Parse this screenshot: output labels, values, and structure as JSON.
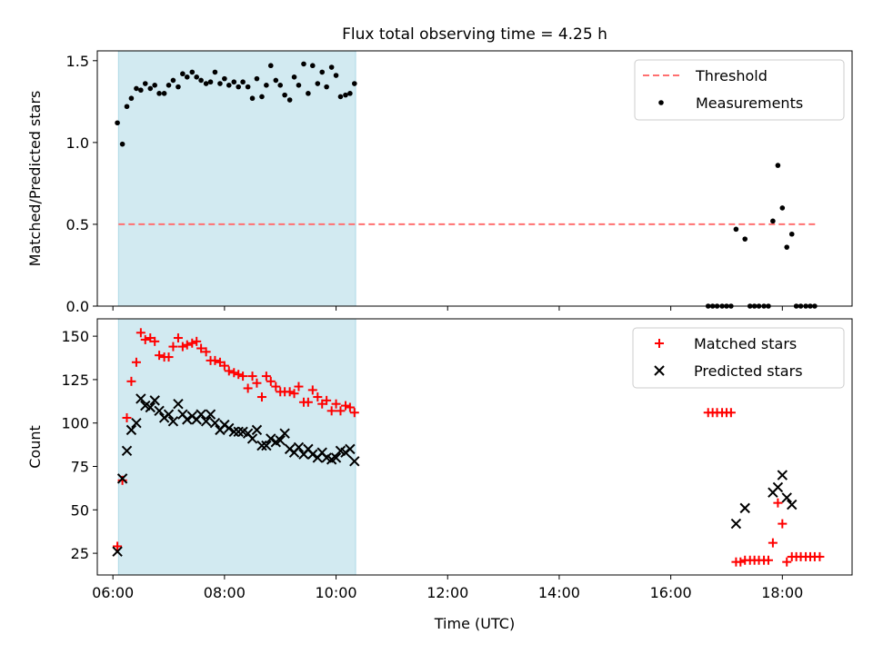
{
  "title": "Flux total observing time = 4.25 h",
  "chart_data": [
    {
      "type": "scatter",
      "ylabel": "Matched/Predicted stars",
      "xlabel": "",
      "xlim": [
        5.72,
        19.25
      ],
      "ylim": [
        0,
        1.56
      ],
      "yticks": [
        0.0,
        0.5,
        1.0,
        1.5
      ],
      "ytick_labels": [
        "0.0",
        "0.5",
        "1.0",
        "1.5"
      ],
      "xticks": [
        6,
        8,
        10,
        12,
        14,
        16,
        18
      ],
      "shaded_span": [
        6.1,
        10.35
      ],
      "shaded_color": "#add8e6",
      "legend_position": "top-right",
      "threshold": {
        "name": "Threshold",
        "y": 0.5,
        "x": [
          6.1,
          18.65
        ],
        "color": "#ff7070",
        "style": "dashed"
      },
      "series": [
        {
          "name": "Measurements",
          "marker": "dot",
          "color": "#000000",
          "points": [
            [
              6.08,
              1.12
            ],
            [
              6.17,
              0.99
            ],
            [
              6.25,
              1.22
            ],
            [
              6.33,
              1.27
            ],
            [
              6.42,
              1.33
            ],
            [
              6.5,
              1.32
            ],
            [
              6.58,
              1.36
            ],
            [
              6.67,
              1.33
            ],
            [
              6.75,
              1.35
            ],
            [
              6.83,
              1.3
            ],
            [
              6.92,
              1.3
            ],
            [
              7.0,
              1.35
            ],
            [
              7.08,
              1.38
            ],
            [
              7.17,
              1.34
            ],
            [
              7.25,
              1.42
            ],
            [
              7.33,
              1.4
            ],
            [
              7.42,
              1.43
            ],
            [
              7.5,
              1.4
            ],
            [
              7.58,
              1.38
            ],
            [
              7.67,
              1.36
            ],
            [
              7.75,
              1.37
            ],
            [
              7.83,
              1.43
            ],
            [
              7.92,
              1.36
            ],
            [
              8.0,
              1.39
            ],
            [
              8.08,
              1.35
            ],
            [
              8.17,
              1.37
            ],
            [
              8.25,
              1.34
            ],
            [
              8.33,
              1.37
            ],
            [
              8.42,
              1.34
            ],
            [
              8.5,
              1.27
            ],
            [
              8.58,
              1.39
            ],
            [
              8.67,
              1.28
            ],
            [
              8.75,
              1.35
            ],
            [
              8.83,
              1.47
            ],
            [
              8.92,
              1.38
            ],
            [
              9.0,
              1.35
            ],
            [
              9.08,
              1.29
            ],
            [
              9.17,
              1.26
            ],
            [
              9.25,
              1.4
            ],
            [
              9.33,
              1.35
            ],
            [
              9.42,
              1.48
            ],
            [
              9.5,
              1.3
            ],
            [
              9.58,
              1.47
            ],
            [
              9.67,
              1.36
            ],
            [
              9.75,
              1.43
            ],
            [
              9.83,
              1.34
            ],
            [
              9.92,
              1.46
            ],
            [
              10.0,
              1.41
            ],
            [
              10.08,
              1.28
            ],
            [
              10.17,
              1.29
            ],
            [
              10.25,
              1.3
            ],
            [
              10.33,
              1.36
            ],
            [
              16.67,
              0.0
            ],
            [
              16.75,
              0.0
            ],
            [
              16.83,
              0.0
            ],
            [
              16.92,
              0.0
            ],
            [
              17.0,
              0.0
            ],
            [
              17.08,
              0.0
            ],
            [
              17.17,
              0.47
            ],
            [
              17.33,
              0.41
            ],
            [
              17.42,
              0.0
            ],
            [
              17.5,
              0.0
            ],
            [
              17.58,
              0.0
            ],
            [
              17.67,
              0.0
            ],
            [
              17.75,
              0.0
            ],
            [
              17.83,
              0.52
            ],
            [
              17.92,
              0.86
            ],
            [
              18.0,
              0.6
            ],
            [
              18.08,
              0.36
            ],
            [
              18.17,
              0.44
            ],
            [
              18.25,
              0.0
            ],
            [
              18.33,
              0.0
            ],
            [
              18.42,
              0.0
            ],
            [
              18.5,
              0.0
            ],
            [
              18.58,
              0.0
            ]
          ]
        }
      ]
    },
    {
      "type": "scatter",
      "ylabel": "Count",
      "xlabel": "Time (UTC)",
      "xlim": [
        5.72,
        19.25
      ],
      "ylim": [
        12.5,
        160
      ],
      "yticks": [
        25,
        50,
        75,
        100,
        125,
        150
      ],
      "ytick_labels": [
        "25",
        "50",
        "75",
        "100",
        "125",
        "150"
      ],
      "xticks": [
        6,
        8,
        10,
        12,
        14,
        16,
        18
      ],
      "xtick_labels": [
        "06:00",
        "08:00",
        "10:00",
        "12:00",
        "14:00",
        "16:00",
        "18:00"
      ],
      "shaded_span": [
        6.1,
        10.35
      ],
      "shaded_color": "#add8e6",
      "legend_position": "top-right",
      "series": [
        {
          "name": "Matched stars",
          "marker": "plus",
          "color": "#ff0000",
          "points": [
            [
              6.08,
              29
            ],
            [
              6.17,
              67
            ],
            [
              6.25,
              103
            ],
            [
              6.33,
              124
            ],
            [
              6.42,
              135
            ],
            [
              6.5,
              152
            ],
            [
              6.58,
              148
            ],
            [
              6.67,
              149
            ],
            [
              6.75,
              147
            ],
            [
              6.83,
              139
            ],
            [
              6.92,
              138
            ],
            [
              7.0,
              138
            ],
            [
              7.08,
              144
            ],
            [
              7.17,
              149
            ],
            [
              7.25,
              144
            ],
            [
              7.33,
              145
            ],
            [
              7.42,
              146
            ],
            [
              7.5,
              147
            ],
            [
              7.58,
              143
            ],
            [
              7.67,
              141
            ],
            [
              7.75,
              136
            ],
            [
              7.83,
              136
            ],
            [
              7.92,
              135
            ],
            [
              8.0,
              133
            ],
            [
              8.08,
              130
            ],
            [
              8.17,
              129
            ],
            [
              8.25,
              128
            ],
            [
              8.33,
              127
            ],
            [
              8.42,
              120
            ],
            [
              8.5,
              127
            ],
            [
              8.58,
              123
            ],
            [
              8.67,
              115
            ],
            [
              8.75,
              127
            ],
            [
              8.83,
              124
            ],
            [
              8.92,
              121
            ],
            [
              9.0,
              118
            ],
            [
              9.08,
              118
            ],
            [
              9.17,
              118
            ],
            [
              9.25,
              117
            ],
            [
              9.33,
              121
            ],
            [
              9.42,
              112
            ],
            [
              9.5,
              112
            ],
            [
              9.58,
              119
            ],
            [
              9.67,
              115
            ],
            [
              9.75,
              111
            ],
            [
              9.83,
              113
            ],
            [
              9.92,
              107
            ],
            [
              10.0,
              111
            ],
            [
              10.08,
              107
            ],
            [
              10.17,
              110
            ],
            [
              10.25,
              109
            ],
            [
              10.33,
              106
            ],
            [
              16.67,
              106
            ],
            [
              16.75,
              106
            ],
            [
              16.83,
              106
            ],
            [
              16.92,
              106
            ],
            [
              17.0,
              106
            ],
            [
              17.08,
              106
            ],
            [
              17.17,
              20
            ],
            [
              17.25,
              20
            ],
            [
              17.33,
              21
            ],
            [
              17.42,
              21
            ],
            [
              17.5,
              21
            ],
            [
              17.58,
              21
            ],
            [
              17.67,
              21
            ],
            [
              17.75,
              21
            ],
            [
              17.83,
              31
            ],
            [
              17.92,
              54
            ],
            [
              18.0,
              42
            ],
            [
              18.08,
              20
            ],
            [
              18.17,
              23
            ],
            [
              18.25,
              23
            ],
            [
              18.33,
              23
            ],
            [
              18.42,
              23
            ],
            [
              18.5,
              23
            ],
            [
              18.58,
              23
            ],
            [
              18.67,
              23
            ]
          ]
        },
        {
          "name": "Predicted stars",
          "marker": "x",
          "color": "#000000",
          "points": [
            [
              6.08,
              26
            ],
            [
              6.17,
              68
            ],
            [
              6.25,
              84
            ],
            [
              6.33,
              96
            ],
            [
              6.42,
              100
            ],
            [
              6.5,
              114
            ],
            [
              6.58,
              110
            ],
            [
              6.67,
              109
            ],
            [
              6.75,
              113
            ],
            [
              6.83,
              107
            ],
            [
              6.92,
              103
            ],
            [
              7.0,
              105
            ],
            [
              7.08,
              101
            ],
            [
              7.17,
              111
            ],
            [
              7.25,
              105
            ],
            [
              7.33,
              102
            ],
            [
              7.42,
              104
            ],
            [
              7.5,
              102
            ],
            [
              7.58,
              105
            ],
            [
              7.67,
              101
            ],
            [
              7.75,
              105
            ],
            [
              7.83,
              100
            ],
            [
              7.92,
              96
            ],
            [
              8.0,
              99
            ],
            [
              8.08,
              97
            ],
            [
              8.17,
              95
            ],
            [
              8.25,
              95
            ],
            [
              8.33,
              95
            ],
            [
              8.42,
              94
            ],
            [
              8.5,
              91
            ],
            [
              8.58,
              96
            ],
            [
              8.67,
              87
            ],
            [
              8.75,
              87
            ],
            [
              8.83,
              91
            ],
            [
              8.92,
              89
            ],
            [
              9.0,
              90
            ],
            [
              9.08,
              94
            ],
            [
              9.17,
              85
            ],
            [
              9.25,
              83
            ],
            [
              9.33,
              86
            ],
            [
              9.42,
              82
            ],
            [
              9.5,
              85
            ],
            [
              9.58,
              82
            ],
            [
              9.67,
              80
            ],
            [
              9.75,
              83
            ],
            [
              9.83,
              80
            ],
            [
              9.92,
              79
            ],
            [
              10.0,
              80
            ],
            [
              10.08,
              84
            ],
            [
              10.17,
              83
            ],
            [
              10.25,
              85
            ],
            [
              10.33,
              78
            ],
            [
              17.17,
              42
            ],
            [
              17.33,
              51
            ],
            [
              17.83,
              60
            ],
            [
              17.92,
              63
            ],
            [
              18.0,
              70
            ],
            [
              18.08,
              57
            ],
            [
              18.17,
              53
            ]
          ]
        }
      ]
    }
  ]
}
